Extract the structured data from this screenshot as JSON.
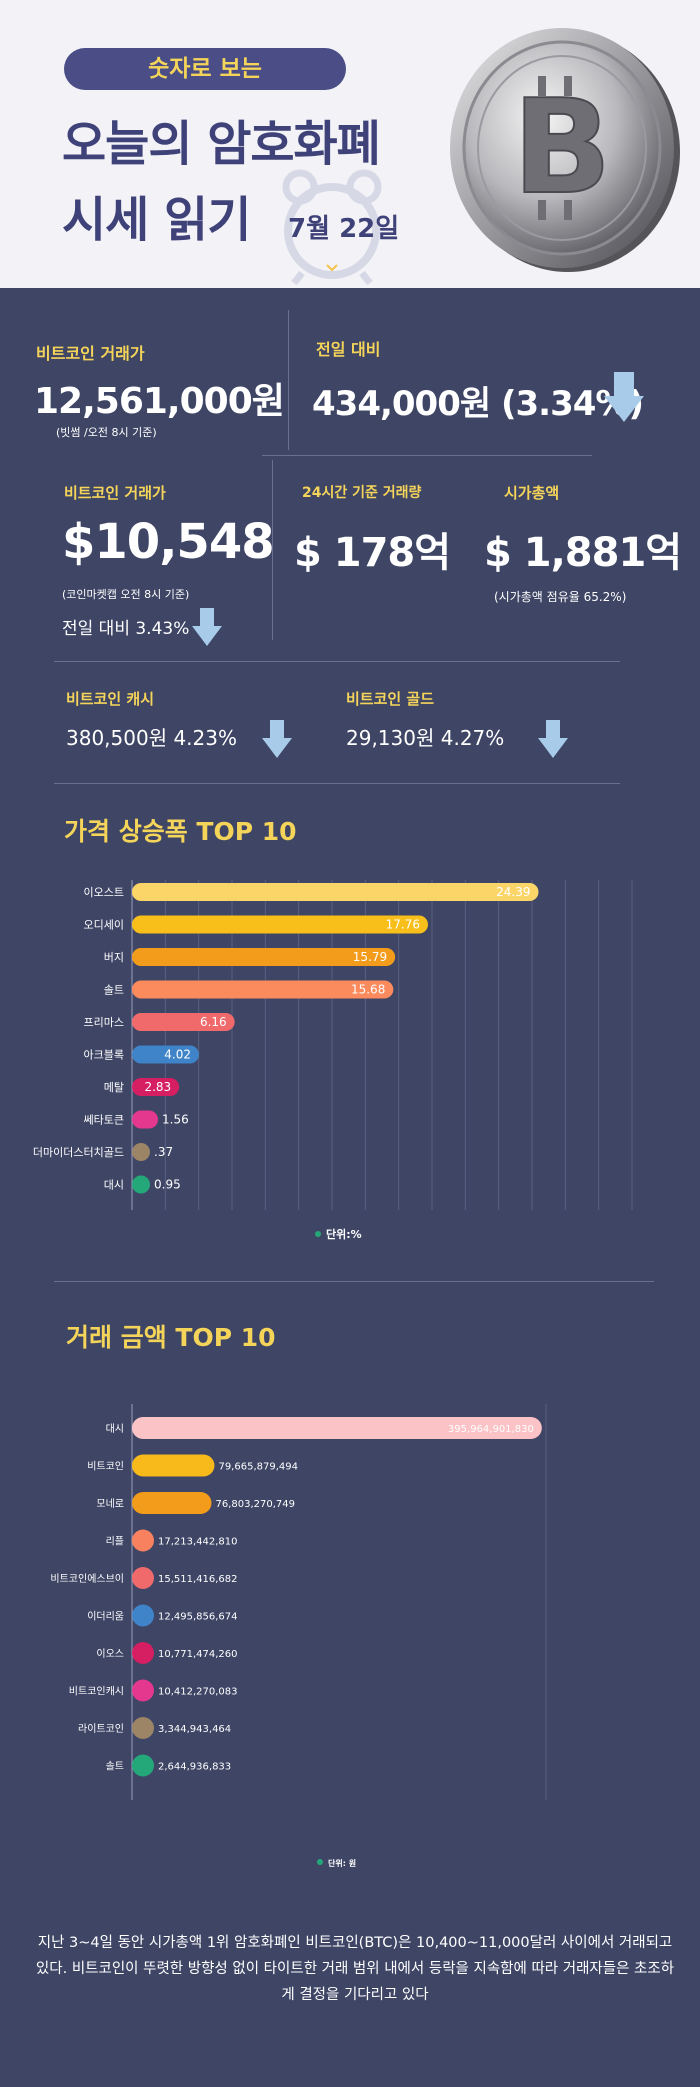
{
  "header": {
    "pill": "숫자로 보는",
    "title_line1": "오늘의 암호화폐",
    "title_line2": "시세 읽기",
    "date": "7월 22일"
  },
  "stats": {
    "btc_krw_label": "비트코인 거래가",
    "btc_krw_value": "12,561,000원",
    "btc_krw_note": "(빗썸 /오전 8시 기준)",
    "prev_day_label": "전일 대비",
    "prev_day_value": "434,000원 (3.34%)",
    "btc_usd_label": "비트코인 거래가",
    "btc_usd_value": "$10,548",
    "btc_usd_note": "(코인마켓캡 오전 8시 기준)",
    "btc_usd_change": "전일 대비 3.43%",
    "volume_label": "24시간 기준 거래량",
    "volume_value": "$ 178억",
    "mcap_label": "시가총액",
    "mcap_value": "$ 1,881억",
    "mcap_note": "(시가총액 점유율 65.2%)",
    "bch_label": "비트코인 캐시",
    "bch_value": "380,500원  4.23%",
    "btg_label": "비트코인 골드",
    "btg_value": "29,130원   4.27%"
  },
  "chart_data": [
    {
      "type": "bar",
      "title": "가격 상승폭 TOP 10",
      "categories": [
        "이오스트",
        "오디세이",
        "버지",
        "솔트",
        "프리마스",
        "아크블록",
        "메탈",
        "쎄타토큰",
        "더마이더스터치골드",
        "대시"
      ],
      "values": [
        24.39,
        17.76,
        15.79,
        15.68,
        6.16,
        4.02,
        2.83,
        1.56,
        0.37,
        0.95
      ],
      "value_labels": [
        "24.39",
        "17.76",
        "15.79",
        "15.68",
        "6.16",
        "4.02",
        "2.83",
        "1.56",
        ".37",
        "0.95"
      ],
      "colors": [
        "#fbd568",
        "#f8be19",
        "#f39c1b",
        "#fb8a5c",
        "#f06a6c",
        "#3f84c8",
        "#d61e62",
        "#e4388e",
        "#9b8566",
        "#24a87a"
      ],
      "legend": "단위:%",
      "legend_color": "#24a87a",
      "xlim": [
        0,
        30
      ],
      "grid": true
    },
    {
      "type": "bar",
      "title": "거래 금액 TOP 10",
      "categories": [
        "대시",
        "비트코인",
        "모네로",
        "리플",
        "비트코인에스브이",
        "이더리움",
        "이오스",
        "비트코인캐시",
        "라이트코인",
        "솔트"
      ],
      "values": [
        395964901830,
        79665879494,
        76803270749,
        17213442810,
        15511416682,
        12495856674,
        10771474260,
        10412270083,
        3344943464,
        2644936833
      ],
      "value_labels": [
        "395,964,901,830",
        "79,665,879,494",
        "76,803,270,749",
        "17,213,442,810",
        "15,511,416,682",
        "12,495,856,674",
        "10,771,474,260",
        "10,412,270,083",
        "3,344,943,464",
        "2,644,936,833"
      ],
      "colors": [
        "#fbc3c6",
        "#f8b91b",
        "#f39c1b",
        "#f8825f",
        "#f06a6c",
        "#3f84c8",
        "#d61e62",
        "#e4388e",
        "#9b8566",
        "#24a87a"
      ],
      "legend": "단위: 원",
      "legend_color": "#24a87a",
      "xlim": [
        0,
        400000000000
      ],
      "grid": true
    }
  ],
  "footer": {
    "text": "지난 3~4일 동안 시가총액 1위 암호화폐인 비트코인(BTC)은 10,400~11,000달러 사이에서 거래되고 있다. 비트코인이 뚜렷한 방향성 없이 타이트한 거래 범위 내에서 등락을 지속함에 따라 거래자들은 초조하게 결정을 기다리고 있다"
  }
}
